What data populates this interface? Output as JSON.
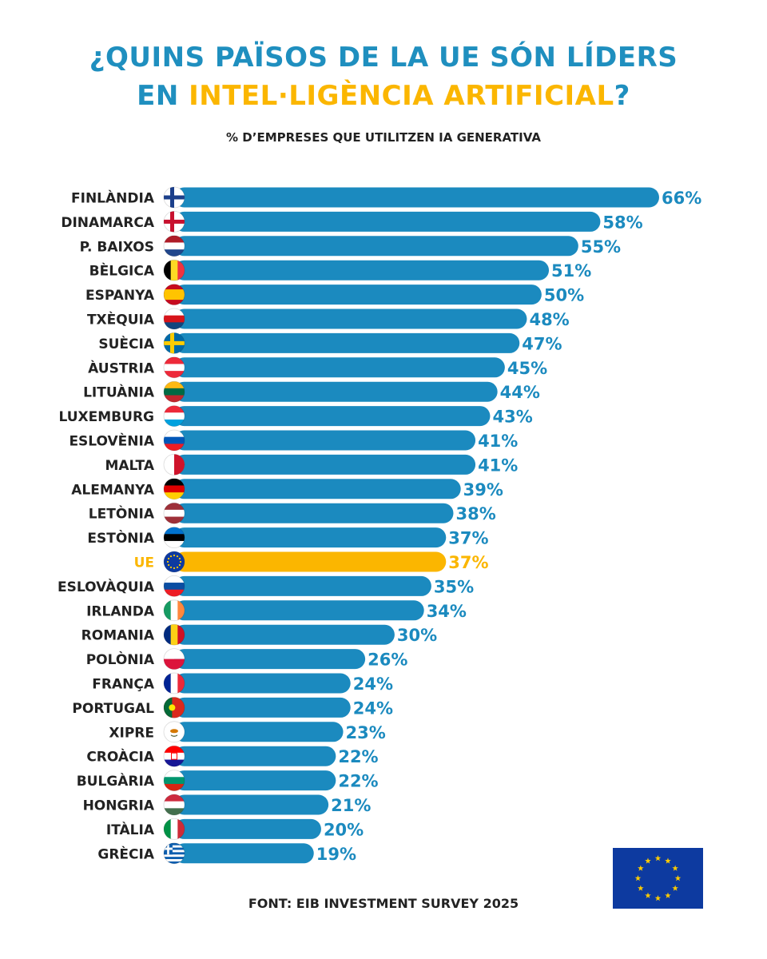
{
  "title": {
    "line1": "¿QUINS PAÏSOS DE LA UE SÓN LÍDERS",
    "line2_prefix": "EN ",
    "line2_highlight": "INTEL·LIGÈNCIA ARTIFICIAL",
    "line2_suffix": "?"
  },
  "subtitle": "% D’EMPRESES QUE UTILITZEN IA GENERATIVA",
  "source": "FONT: EIB INVESTMENT SURVEY 2025",
  "colors": {
    "title_blue": "#1f8fbf",
    "accent_yellow": "#fbb600",
    "bar_blue": "#1b8abf",
    "label_dark": "#222222",
    "eu_blue": "#0d3aa0",
    "eu_star": "#ffcc00"
  },
  "icons": {
    "eu_flag": "eu-flag-icon"
  },
  "chart_data": {
    "type": "bar",
    "orientation": "horizontal",
    "title": "¿QUINS PAÏSOS DE LA UE SÓN LÍDERS EN INTEL·LIGÈNCIA ARTIFICIAL?",
    "ylabel": "% D’EMPRESES QUE UTILITZEN IA GENERATIVA",
    "xlim": [
      0,
      66
    ],
    "unit": "%",
    "highlight_category": "UE",
    "categories": [
      "FINLÀNDIA",
      "DINAMARCA",
      "P. BAIXOS",
      "BÈLGICA",
      "ESPANYA",
      "TXÈQUIA",
      "SUÈCIA",
      "ÀUSTRIA",
      "LITUÀNIA",
      "LUXEMBURG",
      "ESLOVÈNIA",
      "MALTA",
      "ALEMANYA",
      "LETÒNIA",
      "ESTÒNIA",
      "UE",
      "ESLOVÀQUIA",
      "IRLANDA",
      "ROMANIA",
      "POLÒNIA",
      "FRANÇA",
      "PORTUGAL",
      "XIPRE",
      "CROÀCIA",
      "BULGÀRIA",
      "HONGRIA",
      "ITÀLIA",
      "GRÈCIA"
    ],
    "values": [
      66,
      58,
      55,
      51,
      50,
      48,
      47,
      45,
      44,
      43,
      41,
      41,
      39,
      38,
      37,
      37,
      35,
      34,
      30,
      26,
      24,
      24,
      23,
      22,
      22,
      21,
      20,
      19
    ],
    "labels": [
      "66%",
      "58%",
      "55%",
      "51%",
      "50%",
      "48%",
      "47%",
      "45%",
      "44%",
      "43%",
      "41%",
      "41%",
      "39%",
      "38%",
      "37%",
      "37%",
      "35%",
      "34%",
      "30%",
      "26%",
      "24%",
      "24%",
      "23%",
      "22%",
      "22%",
      "21%",
      "20%",
      "19%"
    ],
    "flags": [
      "finland",
      "denmark",
      "netherlands",
      "belgium",
      "spain",
      "czechia",
      "sweden",
      "austria",
      "lithuania",
      "luxembourg",
      "slovenia",
      "malta",
      "germany",
      "latvia",
      "estonia",
      "eu",
      "slovakia",
      "ireland",
      "romania",
      "poland",
      "france",
      "portugal",
      "cyprus",
      "croatia",
      "bulgaria",
      "hungary",
      "italy",
      "greece"
    ],
    "flag_colors": {
      "finland": [
        "#ffffff",
        "#1b3f8b"
      ],
      "denmark": [
        "#ffffff",
        "#c8102e"
      ],
      "netherlands": [
        "#ae1c28",
        "#ffffff",
        "#21468b"
      ],
      "belgium": [
        "#000000",
        "#fdda24",
        "#ef3340"
      ],
      "spain": [
        "#c60b1e",
        "#ffc400",
        "#c60b1e"
      ],
      "czechia": [
        "#ffffff",
        "#d7141a",
        "#11457e"
      ],
      "sweden": [
        "#006aa7",
        "#fecc00"
      ],
      "austria": [
        "#ed2939",
        "#ffffff",
        "#ed2939"
      ],
      "lithuania": [
        "#fdb913",
        "#006a44",
        "#c1272d"
      ],
      "luxembourg": [
        "#ed2939",
        "#ffffff",
        "#00a1de"
      ],
      "slovenia": [
        "#ffffff",
        "#0057b8",
        "#ed1c24"
      ],
      "malta": [
        "#ffffff",
        "#cf142b"
      ],
      "germany": [
        "#000000",
        "#dd0000",
        "#ffce00"
      ],
      "latvia": [
        "#9e3039",
        "#ffffff",
        "#9e3039"
      ],
      "estonia": [
        "#0072ce",
        "#000000",
        "#ffffff"
      ],
      "eu": [
        "#0d3aa0",
        "#ffcc00"
      ],
      "slovakia": [
        "#ffffff",
        "#0b4ea2",
        "#ee1c25"
      ],
      "ireland": [
        "#169b62",
        "#ffffff",
        "#ff883e"
      ],
      "romania": [
        "#002b7f",
        "#fcd116",
        "#ce1126"
      ],
      "poland": [
        "#ffffff",
        "#dc143c"
      ],
      "france": [
        "#002395",
        "#ffffff",
        "#ed2939"
      ],
      "portugal": [
        "#046a38",
        "#da291c",
        "#ffe900"
      ],
      "cyprus": [
        "#ffffff",
        "#d57800"
      ],
      "croatia": [
        "#ff0000",
        "#ffffff",
        "#171796"
      ],
      "bulgaria": [
        "#ffffff",
        "#00966e",
        "#d62612"
      ],
      "hungary": [
        "#cd2a3e",
        "#ffffff",
        "#436f4d"
      ],
      "italy": [
        "#009246",
        "#ffffff",
        "#ce2b37"
      ],
      "greece": [
        "#0d5eaf",
        "#ffffff"
      ]
    }
  }
}
